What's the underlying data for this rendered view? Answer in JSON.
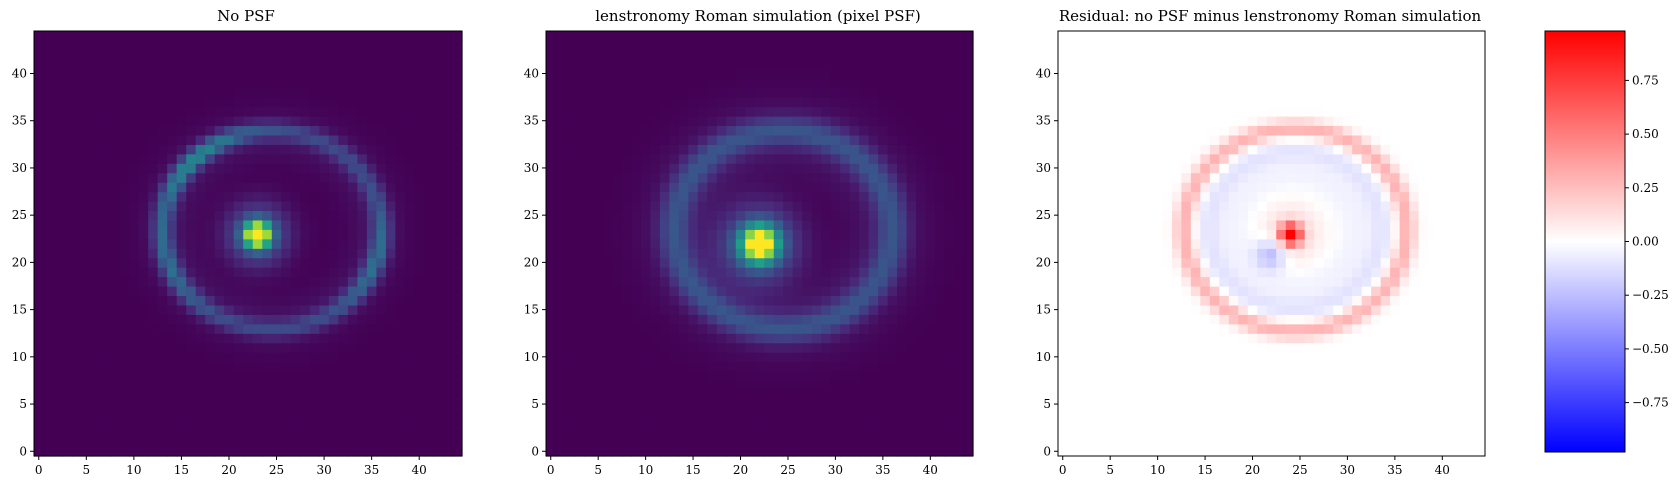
{
  "chart_data": [
    {
      "type": "heatmap",
      "title": "No PSF",
      "xlabel": "",
      "ylabel": "",
      "xlim": [
        -0.5,
        44.5
      ],
      "ylim": [
        -0.5,
        44.5
      ],
      "xticks": [
        "0",
        "5",
        "10",
        "15",
        "20",
        "25",
        "30",
        "35",
        "40"
      ],
      "yticks": [
        "0",
        "5",
        "10",
        "15",
        "20",
        "25",
        "30",
        "35",
        "40"
      ],
      "colormap": "viridis",
      "grid": false,
      "features": {
        "central_source_peak_xy": [
          23,
          23
        ],
        "ring_center_xy": [
          24.5,
          23.5
        ],
        "ring_radius_x": 11.5,
        "ring_radius_y": 10.5,
        "ring_bright_arc_xy": [
          [
            17,
            33
          ],
          [
            14,
            31
          ],
          [
            12,
            19
          ],
          [
            36,
            20
          ]
        ]
      }
    },
    {
      "type": "heatmap",
      "title": "lenstronomy Roman simulation (pixel PSF)",
      "xlabel": "",
      "ylabel": "",
      "xlim": [
        -0.5,
        44.5
      ],
      "ylim": [
        -0.5,
        44.5
      ],
      "xticks": [
        "0",
        "5",
        "10",
        "15",
        "20",
        "25",
        "30",
        "35",
        "40"
      ],
      "yticks": [
        "0",
        "5",
        "10",
        "15",
        "20",
        "25",
        "30",
        "35",
        "40"
      ],
      "colormap": "viridis",
      "grid": false,
      "features": {
        "central_source_peak_xy": [
          22,
          22
        ],
        "ring_center_xy": [
          24.5,
          23.5
        ],
        "ring_radius_x": 11.5,
        "ring_radius_y": 10.5
      }
    },
    {
      "type": "heatmap",
      "title": "Residual: no PSF minus lenstronomy Roman simulation",
      "xlabel": "",
      "ylabel": "",
      "xlim": [
        -0.5,
        44.5
      ],
      "ylim": [
        -0.5,
        44.5
      ],
      "xticks": [
        "0",
        "5",
        "10",
        "15",
        "20",
        "25",
        "30",
        "35",
        "40"
      ],
      "yticks": [
        "0",
        "5",
        "10",
        "15",
        "20",
        "25",
        "30",
        "35",
        "40"
      ],
      "colormap": "bwr",
      "grid": false,
      "features": {
        "positive_peak_xy": [
          24,
          23
        ],
        "negative_peak_xy": [
          22,
          21
        ],
        "ring_positive": true
      }
    }
  ],
  "colorbar": {
    "colormap": "bwr",
    "range": [
      -0.98,
      0.98
    ],
    "tick_values": [
      -0.75,
      -0.5,
      -0.25,
      0.0,
      0.25,
      0.5,
      0.75
    ],
    "tick_labels": [
      "−0.75",
      "−0.50",
      "−0.25",
      "0.00",
      "0.25",
      "0.50",
      "0.75"
    ]
  }
}
